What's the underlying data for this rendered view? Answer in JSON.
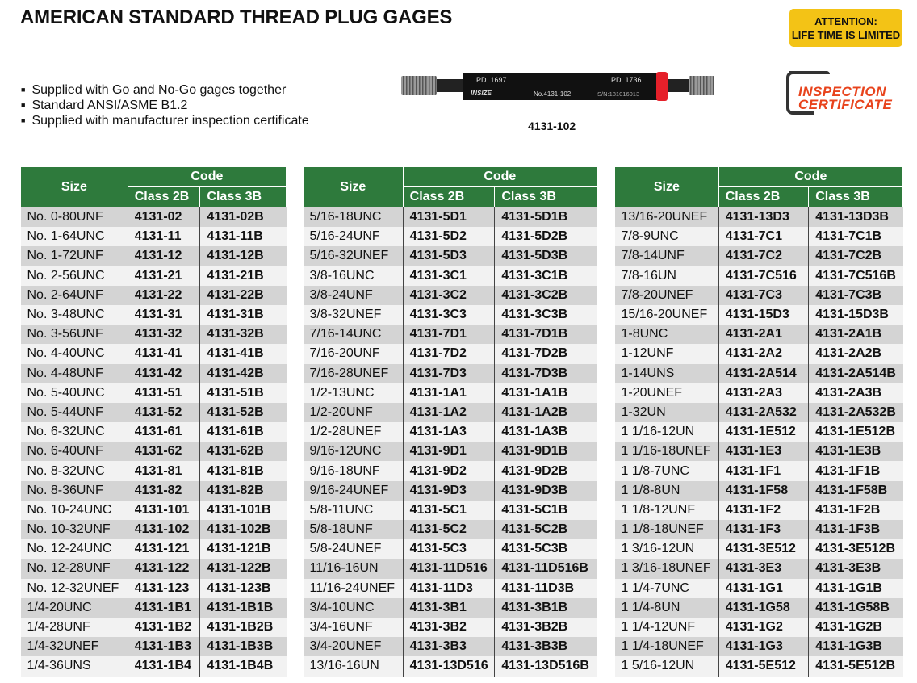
{
  "title": "AMERICAN STANDARD THREAD PLUG GAGES",
  "bullets": [
    "Supplied with Go and No-Go gages together",
    "Standard ANSI/ASME B1.2",
    "Supplied with manufacturer inspection certificate"
  ],
  "attention": {
    "line1": "ATTENTION:",
    "line2": "LIFE TIME IS LIMITED"
  },
  "certificate": {
    "line1": "INSPECTION",
    "line2": "CERTIFICATE"
  },
  "product": {
    "caption": "4131-102",
    "pd_go": "PD .1697",
    "pd_nogo": "PD .1736",
    "brand": "INSIZE",
    "model": "No.4131-102",
    "serial": "S/N:181016013"
  },
  "headers": {
    "size": "Size",
    "code": "Code",
    "class2b": "Class 2B",
    "class3b": "Class 3B"
  },
  "tables": [
    [
      [
        "No. 0-80UNF",
        "4131-02",
        "4131-02B"
      ],
      [
        "No. 1-64UNC",
        "4131-11",
        "4131-11B"
      ],
      [
        "No. 1-72UNF",
        "4131-12",
        "4131-12B"
      ],
      [
        "No. 2-56UNC",
        "4131-21",
        "4131-21B"
      ],
      [
        "No. 2-64UNF",
        "4131-22",
        "4131-22B"
      ],
      [
        "No. 3-48UNC",
        "4131-31",
        "4131-31B"
      ],
      [
        "No. 3-56UNF",
        "4131-32",
        "4131-32B"
      ],
      [
        "No. 4-40UNC",
        "4131-41",
        "4131-41B"
      ],
      [
        "No. 4-48UNF",
        "4131-42",
        "4131-42B"
      ],
      [
        "No. 5-40UNC",
        "4131-51",
        "4131-51B"
      ],
      [
        "No. 5-44UNF",
        "4131-52",
        "4131-52B"
      ],
      [
        "No. 6-32UNC",
        "4131-61",
        "4131-61B"
      ],
      [
        "No. 6-40UNF",
        "4131-62",
        "4131-62B"
      ],
      [
        "No. 8-32UNC",
        "4131-81",
        "4131-81B"
      ],
      [
        "No. 8-36UNF",
        "4131-82",
        "4131-82B"
      ],
      [
        "No. 10-24UNC",
        "4131-101",
        "4131-101B"
      ],
      [
        "No. 10-32UNF",
        "4131-102",
        "4131-102B"
      ],
      [
        "No. 12-24UNC",
        "4131-121",
        "4131-121B"
      ],
      [
        "No. 12-28UNF",
        "4131-122",
        "4131-122B"
      ],
      [
        "No. 12-32UNEF",
        "4131-123",
        "4131-123B"
      ],
      [
        "1/4-20UNC",
        "4131-1B1",
        "4131-1B1B"
      ],
      [
        "1/4-28UNF",
        "4131-1B2",
        "4131-1B2B"
      ],
      [
        "1/4-32UNEF",
        "4131-1B3",
        "4131-1B3B"
      ],
      [
        "1/4-36UNS",
        "4131-1B4",
        "4131-1B4B"
      ]
    ],
    [
      [
        "5/16-18UNC",
        "4131-5D1",
        "4131-5D1B"
      ],
      [
        "5/16-24UNF",
        "4131-5D2",
        "4131-5D2B"
      ],
      [
        "5/16-32UNEF",
        "4131-5D3",
        "4131-5D3B"
      ],
      [
        "3/8-16UNC",
        "4131-3C1",
        "4131-3C1B"
      ],
      [
        "3/8-24UNF",
        "4131-3C2",
        "4131-3C2B"
      ],
      [
        "3/8-32UNEF",
        "4131-3C3",
        "4131-3C3B"
      ],
      [
        "7/16-14UNC",
        "4131-7D1",
        "4131-7D1B"
      ],
      [
        "7/16-20UNF",
        "4131-7D2",
        "4131-7D2B"
      ],
      [
        "7/16-28UNEF",
        "4131-7D3",
        "4131-7D3B"
      ],
      [
        "1/2-13UNC",
        "4131-1A1",
        "4131-1A1B"
      ],
      [
        "1/2-20UNF",
        "4131-1A2",
        "4131-1A2B"
      ],
      [
        "1/2-28UNEF",
        "4131-1A3",
        "4131-1A3B"
      ],
      [
        "9/16-12UNC",
        "4131-9D1",
        "4131-9D1B"
      ],
      [
        "9/16-18UNF",
        "4131-9D2",
        "4131-9D2B"
      ],
      [
        "9/16-24UNEF",
        "4131-9D3",
        "4131-9D3B"
      ],
      [
        "5/8-11UNC",
        "4131-5C1",
        "4131-5C1B"
      ],
      [
        "5/8-18UNF",
        "4131-5C2",
        "4131-5C2B"
      ],
      [
        "5/8-24UNEF",
        "4131-5C3",
        "4131-5C3B"
      ],
      [
        "11/16-16UN",
        "4131-11D516",
        "4131-11D516B"
      ],
      [
        "11/16-24UNEF",
        "4131-11D3",
        "4131-11D3B"
      ],
      [
        "3/4-10UNC",
        "4131-3B1",
        "4131-3B1B"
      ],
      [
        "3/4-16UNF",
        "4131-3B2",
        "4131-3B2B"
      ],
      [
        "3/4-20UNEF",
        "4131-3B3",
        "4131-3B3B"
      ],
      [
        "13/16-16UN",
        "4131-13D516",
        "4131-13D516B"
      ]
    ],
    [
      [
        "13/16-20UNEF",
        "4131-13D3",
        "4131-13D3B"
      ],
      [
        "7/8-9UNC",
        "4131-7C1",
        "4131-7C1B"
      ],
      [
        "7/8-14UNF",
        "4131-7C2",
        "4131-7C2B"
      ],
      [
        "7/8-16UN",
        "4131-7C516",
        "4131-7C516B"
      ],
      [
        "7/8-20UNEF",
        "4131-7C3",
        "4131-7C3B"
      ],
      [
        "15/16-20UNEF",
        "4131-15D3",
        "4131-15D3B"
      ],
      [
        "1-8UNC",
        "4131-2A1",
        "4131-2A1B"
      ],
      [
        "1-12UNF",
        "4131-2A2",
        "4131-2A2B"
      ],
      [
        "1-14UNS",
        "4131-2A514",
        "4131-2A514B"
      ],
      [
        "1-20UNEF",
        "4131-2A3",
        "4131-2A3B"
      ],
      [
        "1-32UN",
        "4131-2A532",
        "4131-2A532B"
      ],
      [
        "1 1/16-12UN",
        "4131-1E512",
        "4131-1E512B"
      ],
      [
        "1 1/16-18UNEF",
        "4131-1E3",
        "4131-1E3B"
      ],
      [
        "1 1/8-7UNC",
        "4131-1F1",
        "4131-1F1B"
      ],
      [
        "1 1/8-8UN",
        "4131-1F58",
        "4131-1F58B"
      ],
      [
        "1 1/8-12UNF",
        "4131-1F2",
        "4131-1F2B"
      ],
      [
        "1 1/8-18UNEF",
        "4131-1F3",
        "4131-1F3B"
      ],
      [
        "1 3/16-12UN",
        "4131-3E512",
        "4131-3E512B"
      ],
      [
        "1 3/16-18UNEF",
        "4131-3E3",
        "4131-3E3B"
      ],
      [
        "1 1/4-7UNC",
        "4131-1G1",
        "4131-1G1B"
      ],
      [
        "1 1/4-8UN",
        "4131-1G58",
        "4131-1G58B"
      ],
      [
        "1 1/4-12UNF",
        "4131-1G2",
        "4131-1G2B"
      ],
      [
        "1 1/4-18UNEF",
        "4131-1G3",
        "4131-1G3B"
      ],
      [
        "1 5/16-12UN",
        "4131-5E512",
        "4131-5E512B"
      ]
    ]
  ],
  "colors": {
    "header_green": "#2e7a3c",
    "attention_yellow": "#f3c316",
    "certificate_red": "#e8431c",
    "gage_ring_red": "#e5202a"
  }
}
